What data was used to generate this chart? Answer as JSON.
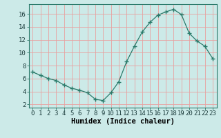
{
  "x": [
    0,
    1,
    2,
    3,
    4,
    5,
    6,
    7,
    8,
    9,
    10,
    11,
    12,
    13,
    14,
    15,
    16,
    17,
    18,
    19,
    20,
    21,
    22,
    23
  ],
  "y": [
    7.0,
    6.5,
    6.0,
    5.7,
    5.0,
    4.5,
    4.2,
    3.8,
    2.8,
    2.6,
    3.8,
    5.5,
    8.6,
    11.0,
    13.2,
    14.7,
    15.8,
    16.3,
    16.7,
    15.9,
    13.0,
    11.8,
    11.0,
    9.1
  ],
  "line_color": "#2a7a6a",
  "marker": "+",
  "marker_size": 4,
  "bg_color": "#cceae8",
  "grid_color": "#e8a0a0",
  "xlabel": "Humidex (Indice chaleur)",
  "xlim": [
    -0.5,
    23.5
  ],
  "ylim": [
    1.5,
    17.5
  ],
  "xticks": [
    0,
    1,
    2,
    3,
    4,
    5,
    6,
    7,
    8,
    9,
    10,
    11,
    12,
    13,
    14,
    15,
    16,
    17,
    18,
    19,
    20,
    21,
    22,
    23
  ],
  "yticks": [
    2,
    4,
    6,
    8,
    10,
    12,
    14,
    16
  ],
  "xlabel_fontsize": 7.5,
  "tick_fontsize": 6.5
}
